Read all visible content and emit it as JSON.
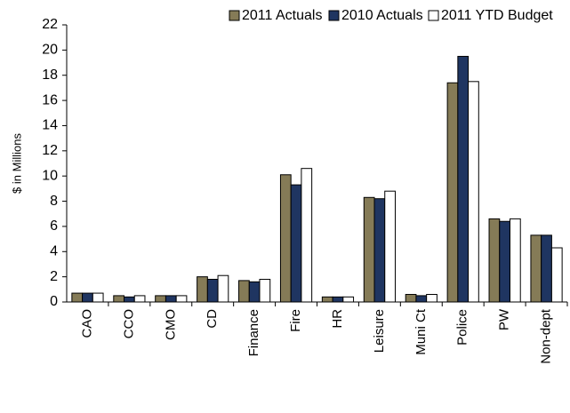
{
  "chart_data": {
    "type": "bar",
    "y_label": "$ in Millions",
    "categories": [
      "CAO",
      "CCO",
      "CMO",
      "CD",
      "Finance",
      "Fire",
      "HR",
      "Leisure",
      "Muni Ct",
      "Police",
      "PW",
      "Non-dept"
    ],
    "series": [
      {
        "name": "2011 Actuals",
        "color": "#857b57",
        "values": [
          0.7,
          0.5,
          0.5,
          2.0,
          1.7,
          10.1,
          0.4,
          8.3,
          0.6,
          17.4,
          6.6,
          5.3
        ]
      },
      {
        "name": "2010 Actuals",
        "color": "#1f3561",
        "values": [
          0.7,
          0.4,
          0.5,
          1.8,
          1.6,
          9.3,
          0.4,
          8.2,
          0.5,
          19.5,
          6.4,
          5.3
        ]
      },
      {
        "name": "2011 YTD Budget",
        "color": "#ffffff",
        "values": [
          0.7,
          0.5,
          0.5,
          2.1,
          1.8,
          10.6,
          0.4,
          8.8,
          0.6,
          17.5,
          6.6,
          4.3
        ]
      }
    ],
    "ylim": [
      0,
      22
    ],
    "yticks": [
      0,
      2,
      4,
      6,
      8,
      10,
      12,
      14,
      16,
      18,
      20,
      22
    ],
    "grid": false,
    "legend": "top"
  }
}
